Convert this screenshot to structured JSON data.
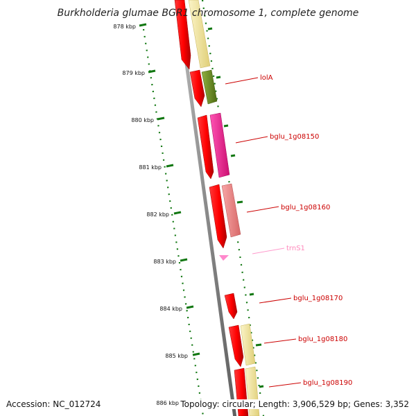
{
  "title": "Burkholderia glumae BGR1 chromosome 1, complete genome",
  "ticks": [
    "878 kbp",
    "879 kbp",
    "880 kbp",
    "881 kbp",
    "882 kbp",
    "883 kbp",
    "884 kbp",
    "885 kbp",
    "886 kbp"
  ],
  "genes": [
    {
      "label": "lolA",
      "color": "#cc0000"
    },
    {
      "label": "bglu_1g08150",
      "color": "#cc0000"
    },
    {
      "label": "bglu_1g08160",
      "color": "#cc0000"
    },
    {
      "label": "trnS1",
      "color": "#ff88bb"
    },
    {
      "label": "bglu_1g08170",
      "color": "#cc0000"
    },
    {
      "label": "bglu_1g08180",
      "color": "#cc0000"
    },
    {
      "label": "bglu_1g08190",
      "color": "#cc0000"
    }
  ],
  "footer": {
    "accession": "Accession: NC_012724",
    "summary": "Topology: circular; Length: 3,906,529 bp; Genes: 3,352"
  },
  "colors": {
    "forward_strand": "#ff0000",
    "cog_yellow": "#f2e59a",
    "cog_olive": "#6b8e23",
    "cog_magenta": "#ff1493",
    "cog_pink": "#f08080",
    "trna": "#ff88cc",
    "tick_green": "#117711",
    "backbone": "#7a7a7a"
  }
}
